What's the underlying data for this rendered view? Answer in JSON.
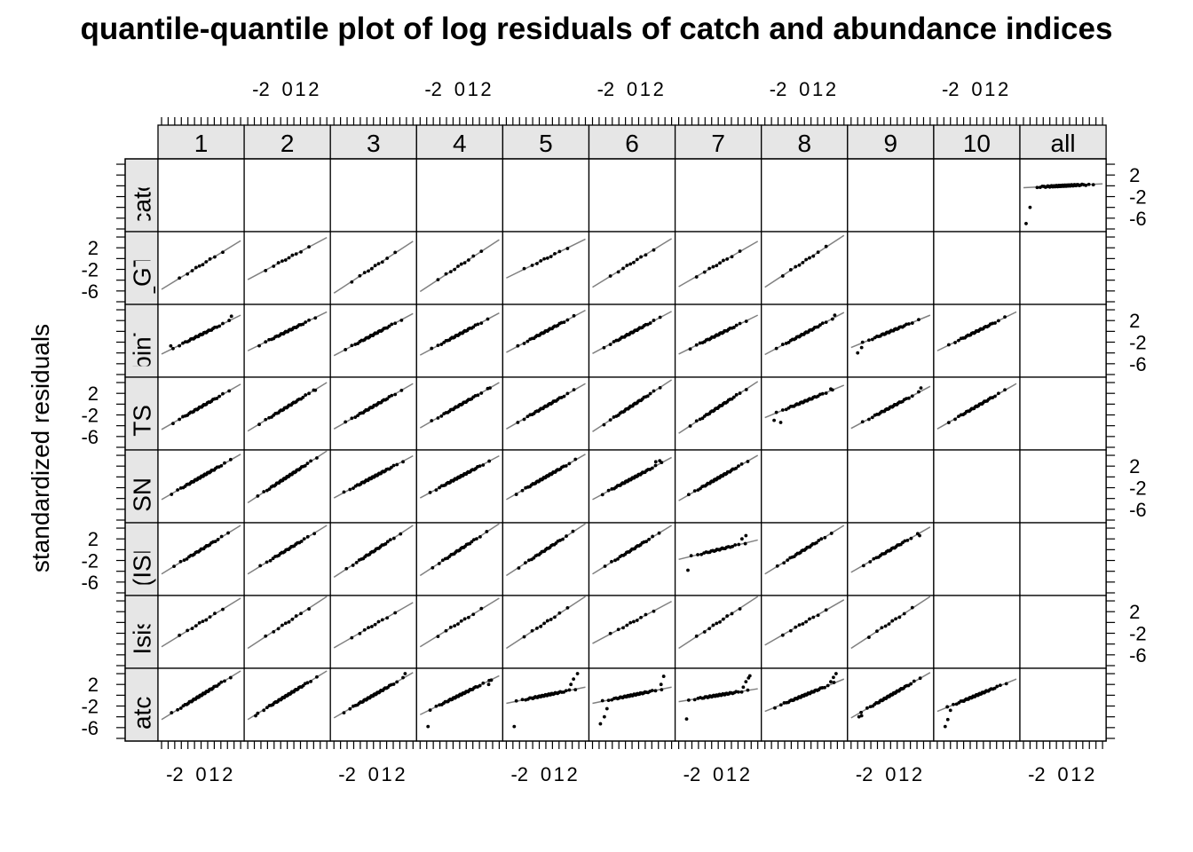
{
  "chart_data": {
    "type": "scatter",
    "title": "quantile-quantile plot of log residuals of catch and abundance indices",
    "ylabel": "standardized residuals",
    "xlabel": "",
    "column_strips": [
      "1",
      "2",
      "3",
      "4",
      "5",
      "6",
      "7",
      "8",
      "9",
      "10",
      "all"
    ],
    "row_strips": [
      "catch",
      "TS_GTS_C",
      "mbinTS_",
      "TS_",
      "SNS",
      "(ISIS",
      "Isis-",
      "catch.r"
    ],
    "x_tick_labels": [
      "-2",
      "0",
      "1",
      "2"
    ],
    "y_tick_labels": [
      "2",
      "-2",
      "-6"
    ],
    "xlim": [
      -3,
      3
    ],
    "ylim": [
      -8,
      4.5
    ],
    "x_ticks": [
      -3,
      -2.5,
      -2,
      -1.5,
      -1,
      -0.5,
      0,
      0.5,
      1,
      1.5,
      2,
      2.5,
      3
    ],
    "y_ticks": [
      4,
      2,
      0,
      -2,
      -4,
      -6,
      -8
    ],
    "panels": [
      {
        "row": 0,
        "col": 10,
        "n": 60,
        "slope": 0.12,
        "intercept": 0.0,
        "low_outliers": [
          [
            -2.8,
            -7.0
          ],
          [
            -2.5,
            -4.0
          ]
        ],
        "high_outliers": [
          [
            2.3,
            0.2
          ]
        ]
      },
      {
        "row": 1,
        "col": 0,
        "n": 10,
        "slope": 1.5,
        "intercept": -1.2
      },
      {
        "row": 1,
        "col": 1,
        "n": 10,
        "slope": 1.3,
        "intercept": 0.0
      },
      {
        "row": 1,
        "col": 2,
        "n": 10,
        "slope": 1.6,
        "intercept": -1.6
      },
      {
        "row": 1,
        "col": 3,
        "n": 10,
        "slope": 1.6,
        "intercept": -1.3
      },
      {
        "row": 1,
        "col": 4,
        "n": 10,
        "slope": 1.2,
        "intercept": 0.0
      },
      {
        "row": 1,
        "col": 5,
        "n": 10,
        "slope": 1.5,
        "intercept": -0.8
      },
      {
        "row": 1,
        "col": 6,
        "n": 10,
        "slope": 1.4,
        "intercept": -1.0
      },
      {
        "row": 1,
        "col": 7,
        "n": 10,
        "slope": 1.6,
        "intercept": -0.5
      },
      {
        "row": 2,
        "col": 0,
        "n": 30,
        "slope": 1.2,
        "intercept": -0.6,
        "low_outliers": [
          [
            -2.3,
            -2.7
          ]
        ],
        "high_outliers": [
          [
            2.3,
            2.8
          ]
        ]
      },
      {
        "row": 2,
        "col": 1,
        "n": 30,
        "slope": 1.2,
        "intercept": 0.0
      },
      {
        "row": 2,
        "col": 2,
        "n": 30,
        "slope": 1.3,
        "intercept": -0.6
      },
      {
        "row": 2,
        "col": 3,
        "n": 30,
        "slope": 1.3,
        "intercept": -0.5
      },
      {
        "row": 2,
        "col": 4,
        "n": 30,
        "slope": 1.3,
        "intercept": 0.0
      },
      {
        "row": 2,
        "col": 5,
        "n": 30,
        "slope": 1.3,
        "intercept": -0.2
      },
      {
        "row": 2,
        "col": 6,
        "n": 30,
        "slope": 1.2,
        "intercept": -0.6
      },
      {
        "row": 2,
        "col": 7,
        "n": 30,
        "slope": 1.3,
        "intercept": -0.4,
        "high_outliers": [
          [
            2.3,
            3.0
          ]
        ]
      },
      {
        "row": 2,
        "col": 8,
        "n": 30,
        "slope": 1.0,
        "intercept": 0.0,
        "low_outliers": [
          [
            -2.5,
            -4.0
          ],
          [
            -2.2,
            -3.0
          ]
        ]
      },
      {
        "row": 2,
        "col": 9,
        "n": 30,
        "slope": 1.2,
        "intercept": 0.0
      },
      {
        "row": 3,
        "col": 0,
        "n": 30,
        "slope": 1.4,
        "intercept": -0.5
      },
      {
        "row": 3,
        "col": 1,
        "n": 30,
        "slope": 1.5,
        "intercept": -0.5,
        "high_outliers": [
          [
            2.0,
            2.6
          ]
        ]
      },
      {
        "row": 3,
        "col": 2,
        "n": 30,
        "slope": 1.4,
        "intercept": -0.4
      },
      {
        "row": 3,
        "col": 3,
        "n": 30,
        "slope": 1.4,
        "intercept": -0.2,
        "high_outliers": [
          [
            2.3,
            3.0
          ]
        ]
      },
      {
        "row": 3,
        "col": 4,
        "n": 30,
        "slope": 1.4,
        "intercept": -0.4
      },
      {
        "row": 3,
        "col": 5,
        "n": 30,
        "slope": 1.6,
        "intercept": -0.3
      },
      {
        "row": 3,
        "col": 6,
        "n": 30,
        "slope": 1.6,
        "intercept": -0.6
      },
      {
        "row": 3,
        "col": 7,
        "n": 30,
        "slope": 1.0,
        "intercept": 0.5,
        "low_outliers": [
          [
            -2.3,
            -3.0
          ],
          [
            -1.8,
            -3.4
          ]
        ],
        "high_outliers": [
          [
            2.0,
            2.8
          ]
        ]
      },
      {
        "row": 3,
        "col": 8,
        "n": 30,
        "slope": 1.3,
        "intercept": -0.6,
        "high_outliers": [
          [
            2.3,
            3.0
          ]
        ]
      },
      {
        "row": 3,
        "col": 9,
        "n": 30,
        "slope": 1.4,
        "intercept": -0.4
      },
      {
        "row": 4,
        "col": 0,
        "n": 40,
        "slope": 1.4,
        "intercept": 0.0
      },
      {
        "row": 4,
        "col": 1,
        "n": 40,
        "slope": 1.6,
        "intercept": 0.0
      },
      {
        "row": 4,
        "col": 2,
        "n": 40,
        "slope": 1.3,
        "intercept": 0.0
      },
      {
        "row": 4,
        "col": 3,
        "n": 40,
        "slope": 1.3,
        "intercept": 0.0
      },
      {
        "row": 4,
        "col": 4,
        "n": 40,
        "slope": 1.4,
        "intercept": 0.0
      },
      {
        "row": 4,
        "col": 5,
        "n": 40,
        "slope": 1.3,
        "intercept": -0.3,
        "high_outliers": [
          [
            1.8,
            2.8
          ],
          [
            2.1,
            3.0
          ]
        ]
      },
      {
        "row": 4,
        "col": 6,
        "n": 40,
        "slope": 1.4,
        "intercept": -0.2
      },
      {
        "row": 5,
        "col": 0,
        "n": 25,
        "slope": 1.5,
        "intercept": 0.0
      },
      {
        "row": 5,
        "col": 1,
        "n": 25,
        "slope": 1.5,
        "intercept": 0.0
      },
      {
        "row": 5,
        "col": 2,
        "n": 25,
        "slope": 1.6,
        "intercept": -0.3
      },
      {
        "row": 5,
        "col": 3,
        "n": 25,
        "slope": 1.6,
        "intercept": 0.0
      },
      {
        "row": 5,
        "col": 4,
        "n": 25,
        "slope": 1.6,
        "intercept": 0.0
      },
      {
        "row": 5,
        "col": 5,
        "n": 25,
        "slope": 1.5,
        "intercept": 0.0
      },
      {
        "row": 5,
        "col": 6,
        "n": 25,
        "slope": 0.6,
        "intercept": 0.0,
        "low_outliers": [
          [
            -2.3,
            -3.8
          ]
        ],
        "high_outliers": [
          [
            1.8,
            2.0
          ],
          [
            2.1,
            2.6
          ]
        ]
      },
      {
        "row": 5,
        "col": 7,
        "n": 25,
        "slope": 1.5,
        "intercept": 0.0
      },
      {
        "row": 5,
        "col": 8,
        "n": 25,
        "slope": 1.4,
        "intercept": 0.0,
        "high_outliers": [
          [
            2.2,
            2.6
          ]
        ]
      },
      {
        "row": 6,
        "col": 0,
        "n": 10,
        "slope": 1.5,
        "intercept": 0.0
      },
      {
        "row": 6,
        "col": 1,
        "n": 10,
        "slope": 1.6,
        "intercept": 0.0
      },
      {
        "row": 6,
        "col": 2,
        "n": 10,
        "slope": 1.4,
        "intercept": -0.5
      },
      {
        "row": 6,
        "col": 3,
        "n": 10,
        "slope": 1.5,
        "intercept": 0.0
      },
      {
        "row": 6,
        "col": 4,
        "n": 10,
        "slope": 1.6,
        "intercept": 0.0
      },
      {
        "row": 6,
        "col": 5,
        "n": 10,
        "slope": 1.3,
        "intercept": 0.0
      },
      {
        "row": 6,
        "col": 6,
        "n": 10,
        "slope": 1.6,
        "intercept": 0.0
      },
      {
        "row": 6,
        "col": 7,
        "n": 10,
        "slope": 1.4,
        "intercept": 0.0
      },
      {
        "row": 6,
        "col": 8,
        "n": 10,
        "slope": 1.6,
        "intercept": 0.0
      },
      {
        "row": 7,
        "col": 0,
        "n": 40,
        "slope": 1.5,
        "intercept": 0.0
      },
      {
        "row": 7,
        "col": 1,
        "n": 40,
        "slope": 1.5,
        "intercept": 0.0,
        "low_outliers": [
          [
            -2.4,
            -3.8
          ]
        ]
      },
      {
        "row": 7,
        "col": 2,
        "n": 40,
        "slope": 1.4,
        "intercept": 0.0,
        "high_outliers": [
          [
            2.4,
            4.0
          ]
        ]
      },
      {
        "row": 7,
        "col": 3,
        "n": 40,
        "slope": 1.2,
        "intercept": 0.0,
        "low_outliers": [
          [
            -2.4,
            -5.8
          ]
        ],
        "high_outliers": [
          [
            2.2,
            2.0
          ],
          [
            2.4,
            2.8
          ]
        ]
      },
      {
        "row": 7,
        "col": 4,
        "n": 40,
        "slope": 0.5,
        "intercept": 0.0,
        "low_outliers": [
          [
            -2.4,
            -5.8
          ]
        ],
        "high_outliers": [
          [
            1.9,
            2.0
          ],
          [
            2.1,
            3.0
          ],
          [
            2.4,
            4.0
          ]
        ]
      },
      {
        "row": 7,
        "col": 5,
        "n": 40,
        "slope": 0.5,
        "intercept": 0.0,
        "low_outliers": [
          [
            -2.4,
            -5.3
          ],
          [
            -2.1,
            -4.0
          ],
          [
            -1.9,
            -2.5
          ]
        ],
        "high_outliers": [
          [
            2.2,
            2.0
          ],
          [
            2.4,
            3.5
          ]
        ]
      },
      {
        "row": 7,
        "col": 6,
        "n": 40,
        "slope": 0.4,
        "intercept": 0.0,
        "low_outliers": [
          [
            -2.4,
            -4.4
          ]
        ],
        "high_outliers": [
          [
            1.9,
            1.5
          ],
          [
            2.1,
            2.5
          ],
          [
            2.3,
            3.2
          ],
          [
            2.4,
            3.6
          ]
        ]
      },
      {
        "row": 7,
        "col": 7,
        "n": 40,
        "slope": 1.0,
        "intercept": 0.0,
        "high_outliers": [
          [
            2.0,
            2.5
          ],
          [
            2.2,
            3.3
          ],
          [
            2.4,
            4.0
          ]
        ]
      },
      {
        "row": 7,
        "col": 8,
        "n": 40,
        "slope": 1.4,
        "intercept": 0.0,
        "low_outliers": [
          [
            -2.4,
            -4.0
          ],
          [
            -2.2,
            -3.8
          ]
        ]
      },
      {
        "row": 7,
        "col": 9,
        "n": 40,
        "slope": 1.0,
        "intercept": 0.0,
        "low_outliers": [
          [
            -2.4,
            -5.8
          ],
          [
            -2.2,
            -4.5
          ],
          [
            -2.0,
            -2.8
          ]
        ]
      }
    ]
  }
}
